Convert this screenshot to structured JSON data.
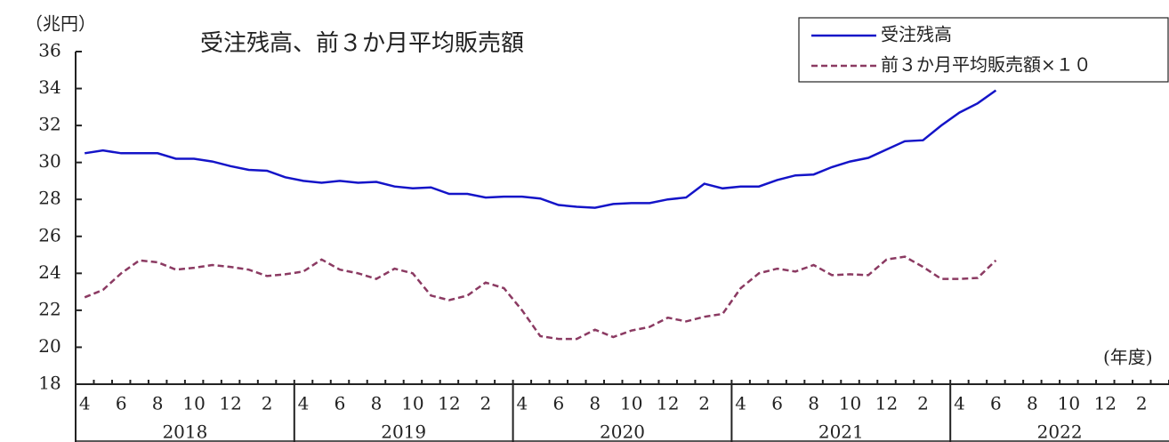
{
  "chart_data": {
    "type": "line",
    "title": "受注残高、前３か月平均販売額",
    "y_label": "（兆円）",
    "x_label": "(年度)",
    "categories": [
      "4",
      null,
      "6",
      null,
      "8",
      null,
      "10",
      null,
      "12",
      null,
      "2",
      null,
      "4",
      null,
      "6",
      null,
      "8",
      null,
      "10",
      null,
      "12",
      null,
      "2",
      null,
      "4",
      null,
      "6",
      null,
      "8",
      null,
      "10",
      null,
      "12",
      null,
      "2",
      null,
      "4",
      null,
      "6",
      null,
      "8",
      null,
      "10",
      null,
      "12",
      null,
      "2",
      null,
      "4",
      null,
      "6",
      null,
      "8",
      null,
      "10",
      null,
      "12",
      null,
      "2",
      null
    ],
    "years": [
      "2018",
      "2019",
      "2020",
      "2021",
      "2022"
    ],
    "series": [
      {
        "name": "受注残高",
        "color": "#1414c8",
        "dash": false,
        "values": [
          30.5,
          30.65,
          30.5,
          30.5,
          30.5,
          30.2,
          30.2,
          30.05,
          29.8,
          29.6,
          29.55,
          29.2,
          29.0,
          28.9,
          29.0,
          28.9,
          28.95,
          28.7,
          28.6,
          28.65,
          28.3,
          28.3,
          28.1,
          28.15,
          28.15,
          28.05,
          27.7,
          27.6,
          27.55,
          27.75,
          27.8,
          27.8,
          28.0,
          28.1,
          28.85,
          28.6,
          28.7,
          28.7,
          29.05,
          29.3,
          29.35,
          29.75,
          30.05,
          30.25,
          30.7,
          31.15,
          31.2,
          32.0,
          32.7,
          33.2,
          33.9,
          null,
          null,
          null,
          null,
          null,
          null,
          null,
          null,
          null
        ]
      },
      {
        "name": "前３か月平均販売額×１０",
        "color": "#8b3a62",
        "dash": true,
        "values": [
          22.7,
          23.1,
          24.0,
          24.7,
          24.6,
          24.2,
          24.3,
          24.45,
          24.35,
          24.2,
          23.85,
          23.95,
          24.1,
          24.75,
          24.2,
          24.0,
          23.7,
          24.25,
          24.0,
          22.8,
          22.55,
          22.8,
          23.5,
          23.2,
          22.0,
          20.6,
          20.45,
          20.45,
          20.95,
          20.55,
          20.9,
          21.1,
          21.6,
          21.4,
          21.65,
          21.8,
          23.2,
          24.0,
          24.25,
          24.1,
          24.45,
          23.9,
          23.95,
          23.9,
          24.75,
          24.9,
          24.35,
          23.7,
          23.7,
          23.75,
          24.7,
          null,
          null,
          null,
          null,
          null,
          null,
          null,
          null,
          null
        ]
      }
    ],
    "ylim": [
      18,
      36
    ],
    "yticks": [
      18,
      20,
      22,
      24,
      26,
      28,
      30,
      32,
      34,
      36
    ]
  }
}
